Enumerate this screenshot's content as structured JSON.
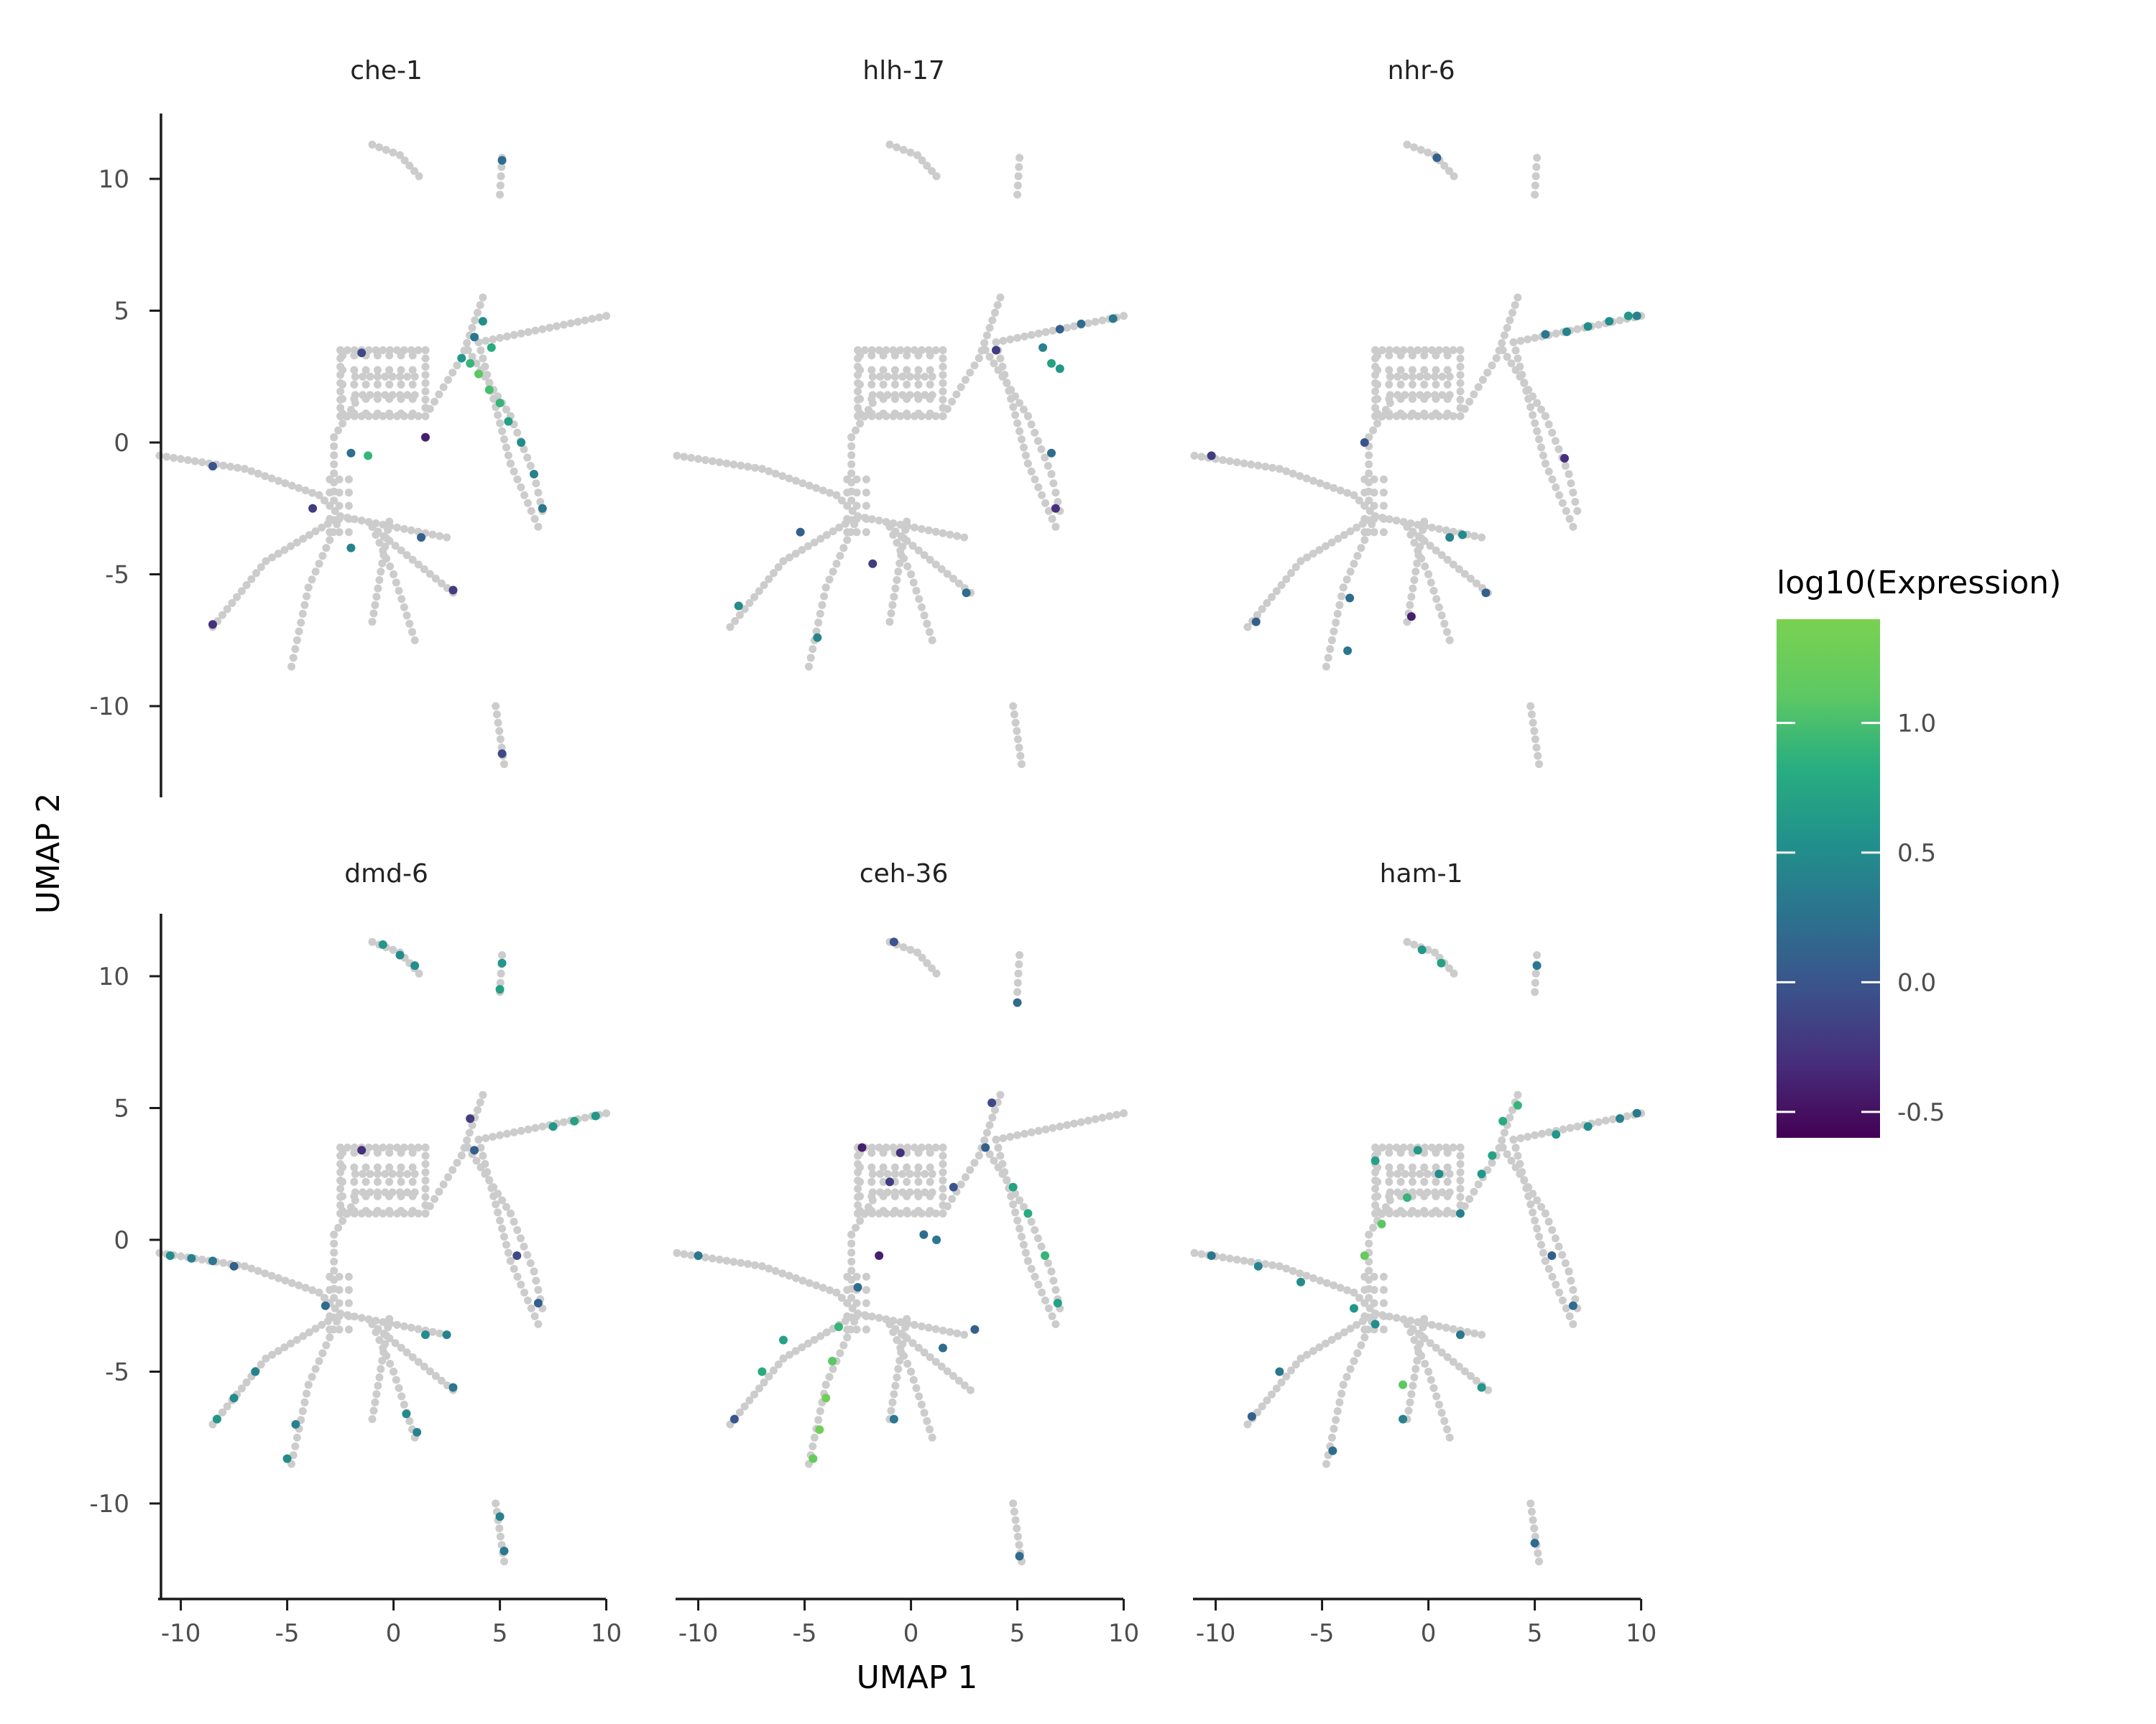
{
  "figure": {
    "x_axis_title": "UMAP 1",
    "y_axis_title": "UMAP 2",
    "legend": {
      "title": "log10(Expression)",
      "colors": [
        "#440154",
        "#472d7b",
        "#3b528b",
        "#2c728e",
        "#21918c",
        "#28ae80",
        "#5ec962",
        "#7ad151"
      ],
      "tick_labels": [
        "-0.5",
        "0.0",
        "0.5",
        "1.0"
      ]
    },
    "background_point_color": "#cccccc"
  },
  "chart_data": {
    "type": "scatter",
    "title": "",
    "xlabel": "UMAP 1",
    "ylabel": "UMAP 2",
    "xlim": [
      -11,
      11
    ],
    "ylim": [
      -13,
      12.5
    ],
    "x_ticks": [
      -10,
      -5,
      0,
      5,
      10
    ],
    "x_tick_labels": [
      "-10",
      "-5",
      "0",
      "5",
      "10"
    ],
    "y_ticks": [
      -10,
      -5,
      0,
      5,
      10
    ],
    "y_tick_labels": [
      "-10",
      "-5",
      "0",
      "5",
      "10"
    ],
    "color_scale": {
      "label": "log10(Expression)",
      "min": -0.6,
      "max": 1.4,
      "palette": "viridis"
    },
    "grid": false,
    "legend_position": "right",
    "facet_titles": [
      "che-1",
      "hlh-17",
      "nhr-6",
      "dmd-6",
      "ceh-36",
      "ham-1"
    ],
    "facets": [
      {
        "name": "che-1",
        "expressing_cells": [
          {
            "x": 3.2,
            "y": 3.2,
            "v": 0.6
          },
          {
            "x": 3.6,
            "y": 3.0,
            "v": 0.9
          },
          {
            "x": 4.0,
            "y": 2.6,
            "v": 1.1
          },
          {
            "x": 4.5,
            "y": 2.0,
            "v": 1.0
          },
          {
            "x": 5.0,
            "y": 1.5,
            "v": 0.9
          },
          {
            "x": 5.4,
            "y": 0.8,
            "v": 0.7
          },
          {
            "x": 6.0,
            "y": 0.0,
            "v": 0.5
          },
          {
            "x": 6.6,
            "y": -1.2,
            "v": 0.4
          },
          {
            "x": 7.0,
            "y": -2.5,
            "v": 0.3
          },
          {
            "x": 4.2,
            "y": 4.6,
            "v": 0.5
          },
          {
            "x": 3.8,
            "y": 4.0,
            "v": 0.3
          },
          {
            "x": 4.6,
            "y": 3.6,
            "v": 0.8
          },
          {
            "x": -1.5,
            "y": 3.4,
            "v": -0.1
          },
          {
            "x": 1.5,
            "y": 0.2,
            "v": -0.4
          },
          {
            "x": -2.0,
            "y": -0.4,
            "v": 0.2
          },
          {
            "x": -1.2,
            "y": -0.5,
            "v": 0.9
          },
          {
            "x": -8.5,
            "y": -0.9,
            "v": 0.0
          },
          {
            "x": -3.8,
            "y": -2.5,
            "v": -0.2
          },
          {
            "x": -8.5,
            "y": -6.9,
            "v": -0.3
          },
          {
            "x": 1.3,
            "y": -3.6,
            "v": 0.1
          },
          {
            "x": 2.8,
            "y": -5.6,
            "v": -0.2
          },
          {
            "x": -2.0,
            "y": -4.0,
            "v": 0.4
          },
          {
            "x": 5.1,
            "y": 10.7,
            "v": 0.2
          },
          {
            "x": 5.1,
            "y": -11.8,
            "v": -0.1
          }
        ]
      },
      {
        "name": "hlh-17",
        "expressing_cells": [
          {
            "x": 6.6,
            "y": 3.0,
            "v": 0.7
          },
          {
            "x": 7.0,
            "y": 2.8,
            "v": 0.6
          },
          {
            "x": 6.2,
            "y": 3.6,
            "v": 0.4
          },
          {
            "x": 7.0,
            "y": 4.3,
            "v": 0.1
          },
          {
            "x": 8.0,
            "y": 4.5,
            "v": 0.2
          },
          {
            "x": 9.5,
            "y": 4.7,
            "v": 0.3
          },
          {
            "x": 4.0,
            "y": 3.5,
            "v": -0.2
          },
          {
            "x": 6.8,
            "y": -2.5,
            "v": -0.3
          },
          {
            "x": 6.6,
            "y": -0.4,
            "v": 0.2
          },
          {
            "x": -5.2,
            "y": -3.4,
            "v": 0.1
          },
          {
            "x": -1.8,
            "y": -4.6,
            "v": -0.2
          },
          {
            "x": 2.6,
            "y": -5.7,
            "v": 0.2
          },
          {
            "x": -8.1,
            "y": -6.2,
            "v": 0.5
          },
          {
            "x": -4.4,
            "y": -7.4,
            "v": 0.4
          }
        ]
      },
      {
        "name": "nhr-6",
        "expressing_cells": [
          {
            "x": 5.5,
            "y": 4.1,
            "v": 0.3
          },
          {
            "x": 6.5,
            "y": 4.2,
            "v": 0.4
          },
          {
            "x": 7.5,
            "y": 4.4,
            "v": 0.5
          },
          {
            "x": 8.5,
            "y": 4.6,
            "v": 0.5
          },
          {
            "x": 9.4,
            "y": 4.8,
            "v": 0.6
          },
          {
            "x": 9.8,
            "y": 4.8,
            "v": 0.4
          },
          {
            "x": 1.0,
            "y": -3.6,
            "v": 0.4
          },
          {
            "x": 1.6,
            "y": -3.5,
            "v": 0.5
          },
          {
            "x": 6.4,
            "y": -0.6,
            "v": -0.3
          },
          {
            "x": -10.2,
            "y": -0.5,
            "v": -0.2
          },
          {
            "x": -0.8,
            "y": -6.6,
            "v": -0.4
          },
          {
            "x": -8.1,
            "y": -6.8,
            "v": 0.1
          },
          {
            "x": -3.8,
            "y": -7.9,
            "v": 0.3
          },
          {
            "x": 0.4,
            "y": 10.8,
            "v": 0.1
          },
          {
            "x": -3.7,
            "y": -5.9,
            "v": 0.2
          },
          {
            "x": -3.0,
            "y": 0.0,
            "v": 0.0
          },
          {
            "x": 2.7,
            "y": -5.7,
            "v": 0.1
          }
        ]
      },
      {
        "name": "dmd-6",
        "expressing_cells": [
          {
            "x": -10.5,
            "y": -0.6,
            "v": 0.5
          },
          {
            "x": -9.5,
            "y": -0.7,
            "v": 0.4
          },
          {
            "x": -8.5,
            "y": -0.8,
            "v": 0.3
          },
          {
            "x": -7.5,
            "y": -1.0,
            "v": 0.1
          },
          {
            "x": -8.3,
            "y": -6.8,
            "v": 0.6
          },
          {
            "x": -7.5,
            "y": -6.0,
            "v": 0.5
          },
          {
            "x": -6.5,
            "y": -5.0,
            "v": 0.4
          },
          {
            "x": -5.0,
            "y": -8.3,
            "v": 0.5
          },
          {
            "x": -4.6,
            "y": -7.0,
            "v": 0.4
          },
          {
            "x": -0.5,
            "y": 11.2,
            "v": 0.6
          },
          {
            "x": 0.3,
            "y": 10.8,
            "v": 0.5
          },
          {
            "x": 1.0,
            "y": 10.4,
            "v": 0.5
          },
          {
            "x": 5.1,
            "y": 10.5,
            "v": 0.6
          },
          {
            "x": 5.0,
            "y": 9.5,
            "v": 0.7
          },
          {
            "x": 8.5,
            "y": 4.5,
            "v": 0.7
          },
          {
            "x": 9.5,
            "y": 4.7,
            "v": 0.6
          },
          {
            "x": 7.5,
            "y": 4.3,
            "v": 0.6
          },
          {
            "x": 1.5,
            "y": -3.6,
            "v": 0.5
          },
          {
            "x": 2.5,
            "y": -3.6,
            "v": 0.4
          },
          {
            "x": 0.6,
            "y": -6.6,
            "v": 0.5
          },
          {
            "x": 1.1,
            "y": -7.3,
            "v": 0.4
          },
          {
            "x": 5.0,
            "y": -10.5,
            "v": 0.4
          },
          {
            "x": 5.2,
            "y": -11.8,
            "v": 0.3
          },
          {
            "x": 3.6,
            "y": 4.6,
            "v": -0.2
          },
          {
            "x": 3.8,
            "y": 3.4,
            "v": 0.1
          },
          {
            "x": -1.5,
            "y": 3.4,
            "v": -0.3
          },
          {
            "x": 6.8,
            "y": -2.4,
            "v": 0.1
          },
          {
            "x": 5.8,
            "y": -0.6,
            "v": -0.1
          },
          {
            "x": -3.2,
            "y": -2.5,
            "v": 0.2
          },
          {
            "x": 2.8,
            "y": -5.6,
            "v": 0.3
          }
        ]
      },
      {
        "name": "ceh-36",
        "expressing_cells": [
          {
            "x": -4.6,
            "y": -8.3,
            "v": 1.2
          },
          {
            "x": -4.3,
            "y": -7.2,
            "v": 1.3
          },
          {
            "x": -4.0,
            "y": -6.0,
            "v": 1.3
          },
          {
            "x": -3.7,
            "y": -4.6,
            "v": 1.1
          },
          {
            "x": -3.4,
            "y": -3.3,
            "v": 0.9
          },
          {
            "x": -7.0,
            "y": -5.0,
            "v": 0.8
          },
          {
            "x": -6.0,
            "y": -3.8,
            "v": 0.7
          },
          {
            "x": -8.3,
            "y": -6.8,
            "v": 0.0
          },
          {
            "x": 4.8,
            "y": 2.0,
            "v": 0.7
          },
          {
            "x": 5.5,
            "y": 1.0,
            "v": 0.8
          },
          {
            "x": 6.3,
            "y": -0.6,
            "v": 0.9
          },
          {
            "x": 6.9,
            "y": -2.4,
            "v": 0.7
          },
          {
            "x": 0.6,
            "y": 0.2,
            "v": 0.2
          },
          {
            "x": 1.2,
            "y": 0.0,
            "v": 0.3
          },
          {
            "x": -1.0,
            "y": 2.2,
            "v": -0.2
          },
          {
            "x": -2.3,
            "y": 3.5,
            "v": -0.4
          },
          {
            "x": -0.5,
            "y": 3.3,
            "v": -0.3
          },
          {
            "x": 2.0,
            "y": 2.0,
            "v": 0.0
          },
          {
            "x": 3.5,
            "y": 3.5,
            "v": 0.1
          },
          {
            "x": -1.5,
            "y": -0.6,
            "v": -0.4
          },
          {
            "x": -2.5,
            "y": -1.8,
            "v": 0.2
          },
          {
            "x": 3.0,
            "y": -3.4,
            "v": 0.1
          },
          {
            "x": 1.5,
            "y": -4.1,
            "v": 0.2
          },
          {
            "x": -10.0,
            "y": -0.6,
            "v": 0.3
          },
          {
            "x": 5.1,
            "y": -12.0,
            "v": 0.2
          },
          {
            "x": 5.0,
            "y": 9.0,
            "v": 0.2
          },
          {
            "x": -0.8,
            "y": 11.3,
            "v": 0.0
          },
          {
            "x": -0.8,
            "y": -6.8,
            "v": 0.3
          },
          {
            "x": 3.8,
            "y": 5.2,
            "v": -0.1
          }
        ]
      },
      {
        "name": "ham-1",
        "expressing_cells": [
          {
            "x": -3.0,
            "y": -0.6,
            "v": 1.2
          },
          {
            "x": -2.2,
            "y": 0.6,
            "v": 1.1
          },
          {
            "x": -1.0,
            "y": 1.6,
            "v": 0.9
          },
          {
            "x": -2.5,
            "y": 3.0,
            "v": 0.7
          },
          {
            "x": -0.5,
            "y": 3.4,
            "v": 0.6
          },
          {
            "x": 0.5,
            "y": 2.5,
            "v": 0.5
          },
          {
            "x": 1.5,
            "y": 1.0,
            "v": 0.4
          },
          {
            "x": 2.5,
            "y": 2.5,
            "v": 0.6
          },
          {
            "x": 3.5,
            "y": 4.5,
            "v": 0.8
          },
          {
            "x": 4.2,
            "y": 5.1,
            "v": 0.9
          },
          {
            "x": 3.0,
            "y": 3.2,
            "v": 0.7
          },
          {
            "x": 6.0,
            "y": 4.0,
            "v": 0.6
          },
          {
            "x": 7.5,
            "y": 4.3,
            "v": 0.5
          },
          {
            "x": 9.0,
            "y": 4.6,
            "v": 0.4
          },
          {
            "x": 9.8,
            "y": 4.8,
            "v": 0.3
          },
          {
            "x": -10.2,
            "y": -0.6,
            "v": 0.3
          },
          {
            "x": -8.0,
            "y": -1.0,
            "v": 0.4
          },
          {
            "x": -6.0,
            "y": -1.6,
            "v": 0.5
          },
          {
            "x": -3.5,
            "y": -2.6,
            "v": 0.6
          },
          {
            "x": -2.5,
            "y": -3.2,
            "v": 0.5
          },
          {
            "x": -7.0,
            "y": -5.0,
            "v": 0.3
          },
          {
            "x": -8.3,
            "y": -6.7,
            "v": 0.1
          },
          {
            "x": -4.5,
            "y": -8.0,
            "v": 0.2
          },
          {
            "x": 1.5,
            "y": -3.6,
            "v": 0.3
          },
          {
            "x": 2.5,
            "y": -5.6,
            "v": 0.6
          },
          {
            "x": -1.2,
            "y": -6.8,
            "v": 0.4
          },
          {
            "x": 6.8,
            "y": -2.5,
            "v": 0.2
          },
          {
            "x": 5.8,
            "y": -0.6,
            "v": 0.1
          },
          {
            "x": 0.6,
            "y": 10.5,
            "v": 0.7
          },
          {
            "x": -0.3,
            "y": 11.0,
            "v": 0.6
          },
          {
            "x": 5.1,
            "y": 10.4,
            "v": 0.3
          },
          {
            "x": 5.0,
            "y": -11.5,
            "v": 0.2
          },
          {
            "x": -1.2,
            "y": -5.5,
            "v": 1.1
          }
        ]
      }
    ]
  }
}
